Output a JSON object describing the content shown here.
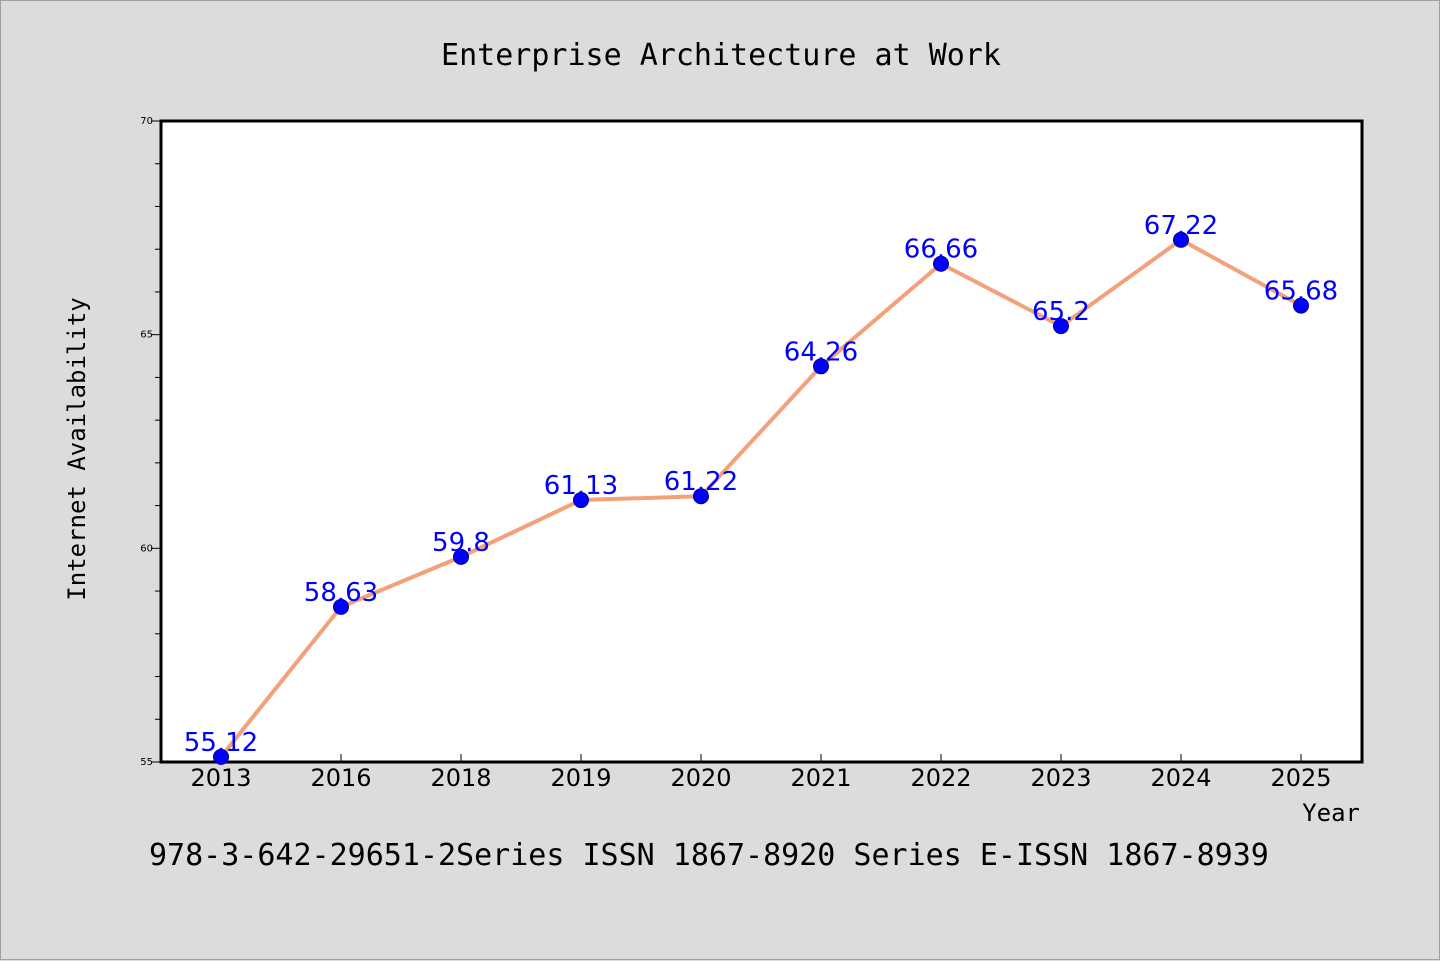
{
  "chart_data": {
    "type": "line",
    "title": "Enterprise Architecture at Work",
    "xlabel": "Year",
    "ylabel": "Internet Availability",
    "categories": [
      "2013",
      "2016",
      "2018",
      "2019",
      "2020",
      "2021",
      "2022",
      "2023",
      "2024",
      "2025"
    ],
    "series": [
      {
        "values": [
          55.12,
          58.63,
          59.8,
          61.13,
          61.22,
          64.26,
          66.66,
          65.2,
          67.22,
          65.68
        ],
        "data_labels": [
          "55.12",
          "58.63",
          "59.8",
          "61.13",
          "61.22",
          "64.26",
          "66.66",
          "65.2",
          "67.22",
          "65.68"
        ],
        "line_color": "#f4a07a",
        "marker_color": "#0000ff"
      }
    ],
    "ylim": [
      55,
      70
    ],
    "yticks": [
      55,
      60,
      65,
      70
    ],
    "ytick_labels": [
      "55",
      "60",
      "65",
      "70"
    ],
    "grid": false,
    "legend": "none"
  },
  "footer": {
    "text": "978-3-642-29651-2Series ISSN 1867-8920 Series E-ISSN 1867-8939"
  },
  "colors": {
    "background": "#dcdcdc",
    "plot_background": "#ffffff",
    "line": "#f4a07a",
    "marker": "#0000ff",
    "label": "#0000ff"
  }
}
